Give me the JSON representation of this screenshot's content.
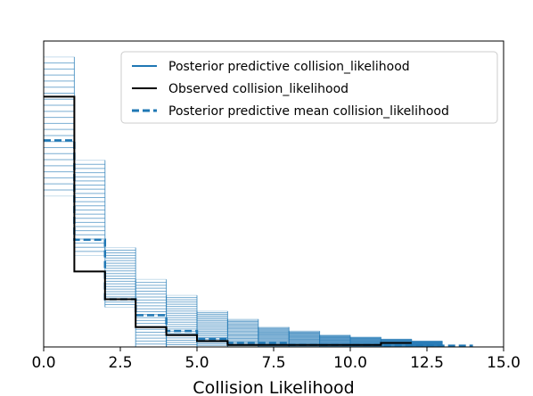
{
  "chart_data": {
    "type": "line",
    "title": "",
    "xlabel": "Collision Likelihood",
    "ylabel": "",
    "xlim": [
      0,
      15
    ],
    "ylim": [
      0,
      0.77
    ],
    "xticks": [
      "0.0",
      "2.5",
      "5.0",
      "7.5",
      "10.0",
      "12.5",
      "15.0"
    ],
    "grid": false,
    "legend_position": "top-right",
    "bin_edges": [
      0,
      1,
      2,
      3,
      4,
      5,
      6,
      7,
      8,
      9,
      10,
      11,
      12,
      13,
      14
    ],
    "series": [
      {
        "name": "Posterior predictive collision_likelihood",
        "color": "#1f77b4",
        "style": "solid",
        "kind": "sample-band",
        "lower": [
          0.38,
          0.23,
          0.1,
          0.0,
          0.0,
          0.0,
          0.0,
          0.0,
          0.0,
          0.0,
          0.0,
          0.0,
          0.0,
          0.0
        ],
        "upper": [
          0.73,
          0.47,
          0.25,
          0.17,
          0.13,
          0.09,
          0.07,
          0.05,
          0.04,
          0.03,
          0.025,
          0.02,
          0.015,
          0.0
        ],
        "bins": [
          0,
          1,
          2,
          3,
          4,
          5,
          6,
          7,
          8,
          9,
          10,
          11,
          12,
          13,
          14
        ]
      },
      {
        "name": "Observed collision_likelihood",
        "color": "#000000",
        "style": "solid",
        "kind": "step",
        "bins": [
          0,
          1,
          2,
          3,
          4,
          5,
          6,
          7,
          8,
          9,
          10,
          11,
          12
        ],
        "values": [
          0.63,
          0.19,
          0.12,
          0.05,
          0.03,
          0.015,
          0.005,
          0.005,
          0.005,
          0.005,
          0.005,
          0.01
        ]
      },
      {
        "name": "Posterior predictive mean collision_likelihood",
        "color": "#1f77b4",
        "style": "dashed",
        "kind": "step",
        "bins": [
          0,
          1,
          2,
          3,
          4,
          5,
          6,
          7,
          8,
          9,
          10,
          11,
          12,
          13,
          14
        ],
        "values": [
          0.52,
          0.27,
          0.12,
          0.08,
          0.04,
          0.02,
          0.01,
          0.01,
          0.005,
          0.005,
          0.005,
          0.003,
          0.003,
          0.003
        ]
      }
    ]
  }
}
